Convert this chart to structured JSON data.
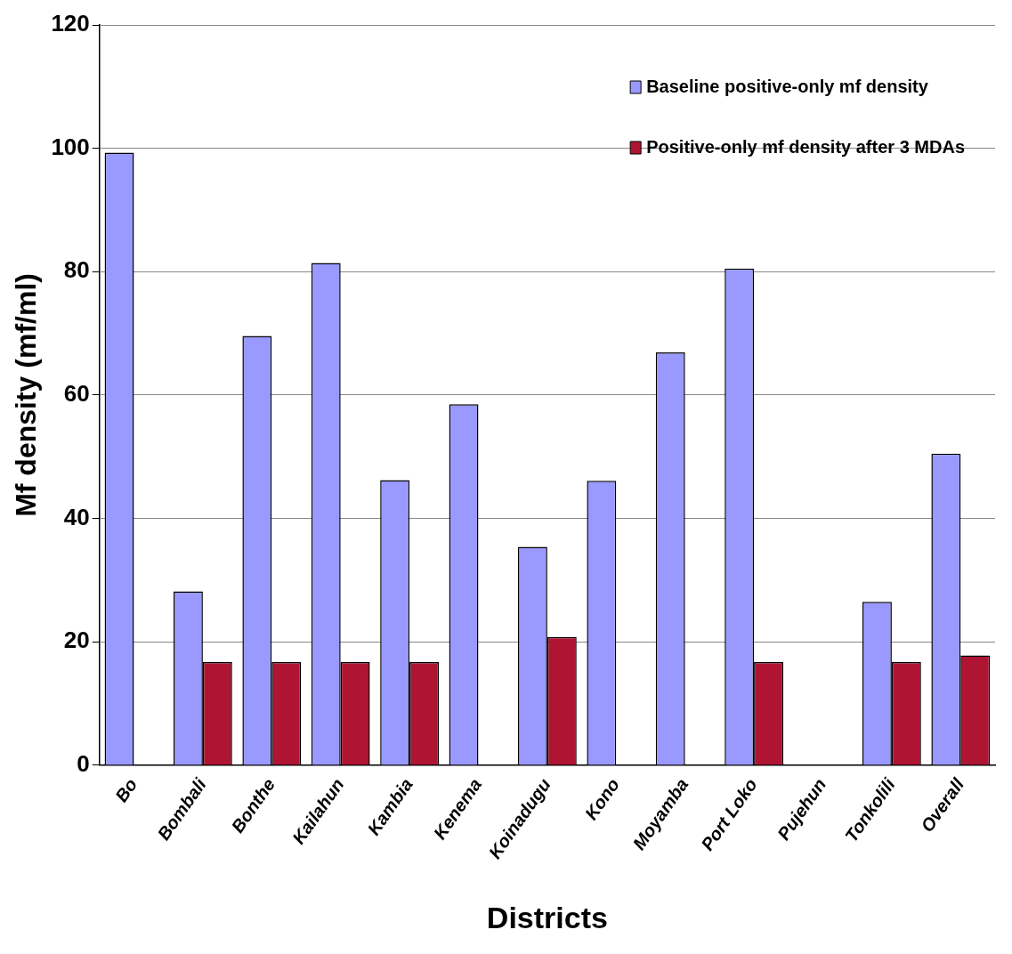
{
  "chart_data": {
    "type": "bar",
    "xlabel": "Districts",
    "ylabel": "Mf density (mf/ml)",
    "categories": [
      "Bo",
      "Bombali",
      "Bonthe",
      "Kailahun",
      "Kambia",
      "Kenema",
      "Koinadugu",
      "Kono",
      "Moyamba",
      "Port Loko",
      "Pujehun",
      "Tonkolili",
      "Overall"
    ],
    "series": [
      {
        "name": "Baseline positive-only mf density",
        "color": "#9999ff",
        "values": [
          99.3,
          28.2,
          69.6,
          81.4,
          46.2,
          58.5,
          35.4,
          46.1,
          66.9,
          80.5,
          null,
          26.5,
          50.5
        ]
      },
      {
        "name": "Positive-only mf density after 3 MDAs",
        "color": "#b01433",
        "values": [
          null,
          16.7,
          16.7,
          16.7,
          16.7,
          null,
          20.8,
          null,
          null,
          16.7,
          null,
          16.7,
          17.8
        ]
      }
    ],
    "ylim": [
      0,
      120
    ],
    "yticks": [
      0,
      20,
      40,
      60,
      80,
      100,
      120
    ],
    "grid": "y",
    "legend": "top right"
  }
}
